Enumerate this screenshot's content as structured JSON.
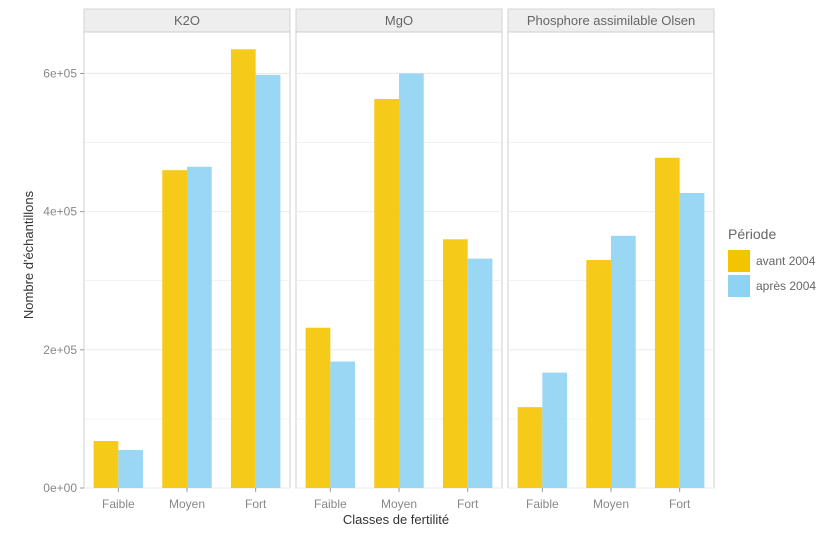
{
  "chart_data": {
    "type": "bar",
    "xlabel": "Classes de fertilité",
    "ylabel": "Nombre d'échantillons",
    "ylim": [
      0,
      660000
    ],
    "yticks": [
      0,
      200000,
      400000,
      600000
    ],
    "ytick_labels": [
      "0e+00",
      "2e+05",
      "4e+05",
      "6e+05"
    ],
    "categories": [
      "Faible",
      "Moyen",
      "Fort"
    ],
    "grid": true,
    "legend": {
      "title": "Période",
      "position": "right"
    },
    "series_meta": [
      {
        "name": "avant 2004",
        "color": "#f5c400"
      },
      {
        "name": "après 2004",
        "color": "#8fd3f4"
      }
    ],
    "facets": [
      {
        "title": "K2O",
        "series": [
          {
            "name": "avant 2004",
            "values": [
              68000,
              460000,
              635000
            ]
          },
          {
            "name": "après 2004",
            "values": [
              55000,
              465000,
              598000
            ]
          }
        ]
      },
      {
        "title": "MgO",
        "series": [
          {
            "name": "avant 2004",
            "values": [
              232000,
              563000,
              360000
            ]
          },
          {
            "name": "après 2004",
            "values": [
              183000,
              600000,
              332000
            ]
          }
        ]
      },
      {
        "title": "Phosphore assimilable Olsen",
        "series": [
          {
            "name": "avant 2004",
            "values": [
              117000,
              330000,
              478000
            ]
          },
          {
            "name": "après 2004",
            "values": [
              167000,
              365000,
              427000
            ]
          }
        ]
      }
    ]
  }
}
